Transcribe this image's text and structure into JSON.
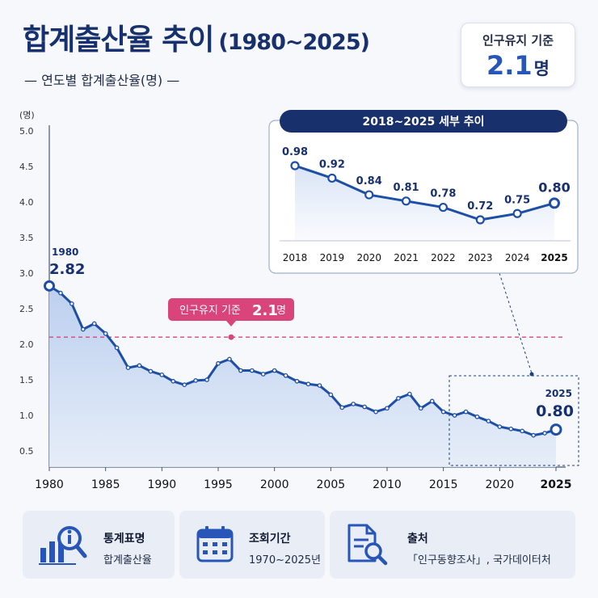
{
  "header": {
    "title": "합계출산율 추이",
    "title_range": "(1980~2025)",
    "subtitle": "— 연도별 합계출산율(명) —"
  },
  "badge": {
    "label": "인구유지 기준",
    "value": "2.1",
    "unit": "명"
  },
  "chart_data": [
    {
      "type": "area",
      "ylabel": "(명)",
      "ylim": [
        0.5,
        5.0
      ],
      "xlim": [
        1980,
        2025
      ],
      "yticks": [
        "5.0",
        "4.5",
        "4.0",
        "3.5",
        "3.0",
        "2.5",
        "2.0",
        "1.5",
        "1.0",
        "0.5"
      ],
      "xticks": [
        "1980",
        "1985",
        "1990",
        "1995",
        "2000",
        "2005",
        "2010",
        "2015",
        "2020",
        "2025"
      ],
      "x": [
        1980,
        1981,
        1982,
        1983,
        1984,
        1985,
        1986,
        1987,
        1988,
        1989,
        1990,
        1991,
        1992,
        1993,
        1994,
        1995,
        1996,
        1997,
        1998,
        1999,
        2000,
        2001,
        2002,
        2003,
        2004,
        2005,
        2006,
        2007,
        2008,
        2009,
        2010,
        2011,
        2012,
        2013,
        2014,
        2015,
        2016,
        2017,
        2018,
        2019,
        2020,
        2021,
        2022,
        2023,
        2024,
        2025
      ],
      "series": [
        {
          "values": [
            2.82,
            2.72,
            2.57,
            2.21,
            2.29,
            2.15,
            1.95,
            1.67,
            1.7,
            1.62,
            1.57,
            1.48,
            1.43,
            1.49,
            1.5,
            1.73,
            1.79,
            1.63,
            1.63,
            1.58,
            1.63,
            1.56,
            1.48,
            1.44,
            1.42,
            1.29,
            1.11,
            1.16,
            1.12,
            1.05,
            1.1,
            1.24,
            1.3,
            1.1,
            1.2,
            1.05,
            1.0,
            1.05,
            0.98,
            0.92,
            0.84,
            0.81,
            0.78,
            0.72,
            0.75,
            0.8
          ]
        }
      ],
      "reference_line": {
        "label": "인구유지 기준",
        "value": 2.1,
        "unit": "명"
      },
      "annotations": [
        {
          "year": "1980",
          "value": "2.82"
        },
        {
          "year": "2025",
          "value": "0.80"
        }
      ],
      "grid": false
    },
    {
      "type": "line",
      "title": "2018~2025 세부 추이",
      "categories": [
        "2018",
        "2019",
        "2020",
        "2021",
        "2022",
        "2023",
        "2024",
        "2025"
      ],
      "values": [
        0.98,
        0.92,
        0.84,
        0.81,
        0.78,
        0.72,
        0.75,
        0.8
      ],
      "labels": [
        "0.98",
        "0.92",
        "0.84",
        "0.81",
        "0.78",
        "0.72",
        "0.75",
        "0.80"
      ]
    }
  ],
  "cards": [
    {
      "title": "통계표명",
      "value": "합계출산율",
      "icon": "magnifier-bar-chart-icon"
    },
    {
      "title": "조회기간",
      "value": "1970~2025년",
      "icon": "calendar-icon"
    },
    {
      "title": "출처",
      "value": "「인구동향조사」, 국가데이터처",
      "icon": "document-search-icon"
    }
  ],
  "colors": {
    "navy": "#17306e",
    "line": "#1e4fa6",
    "fill": "#c9d9f1",
    "reference": "#d9457a",
    "background": "#f6f8fc"
  }
}
